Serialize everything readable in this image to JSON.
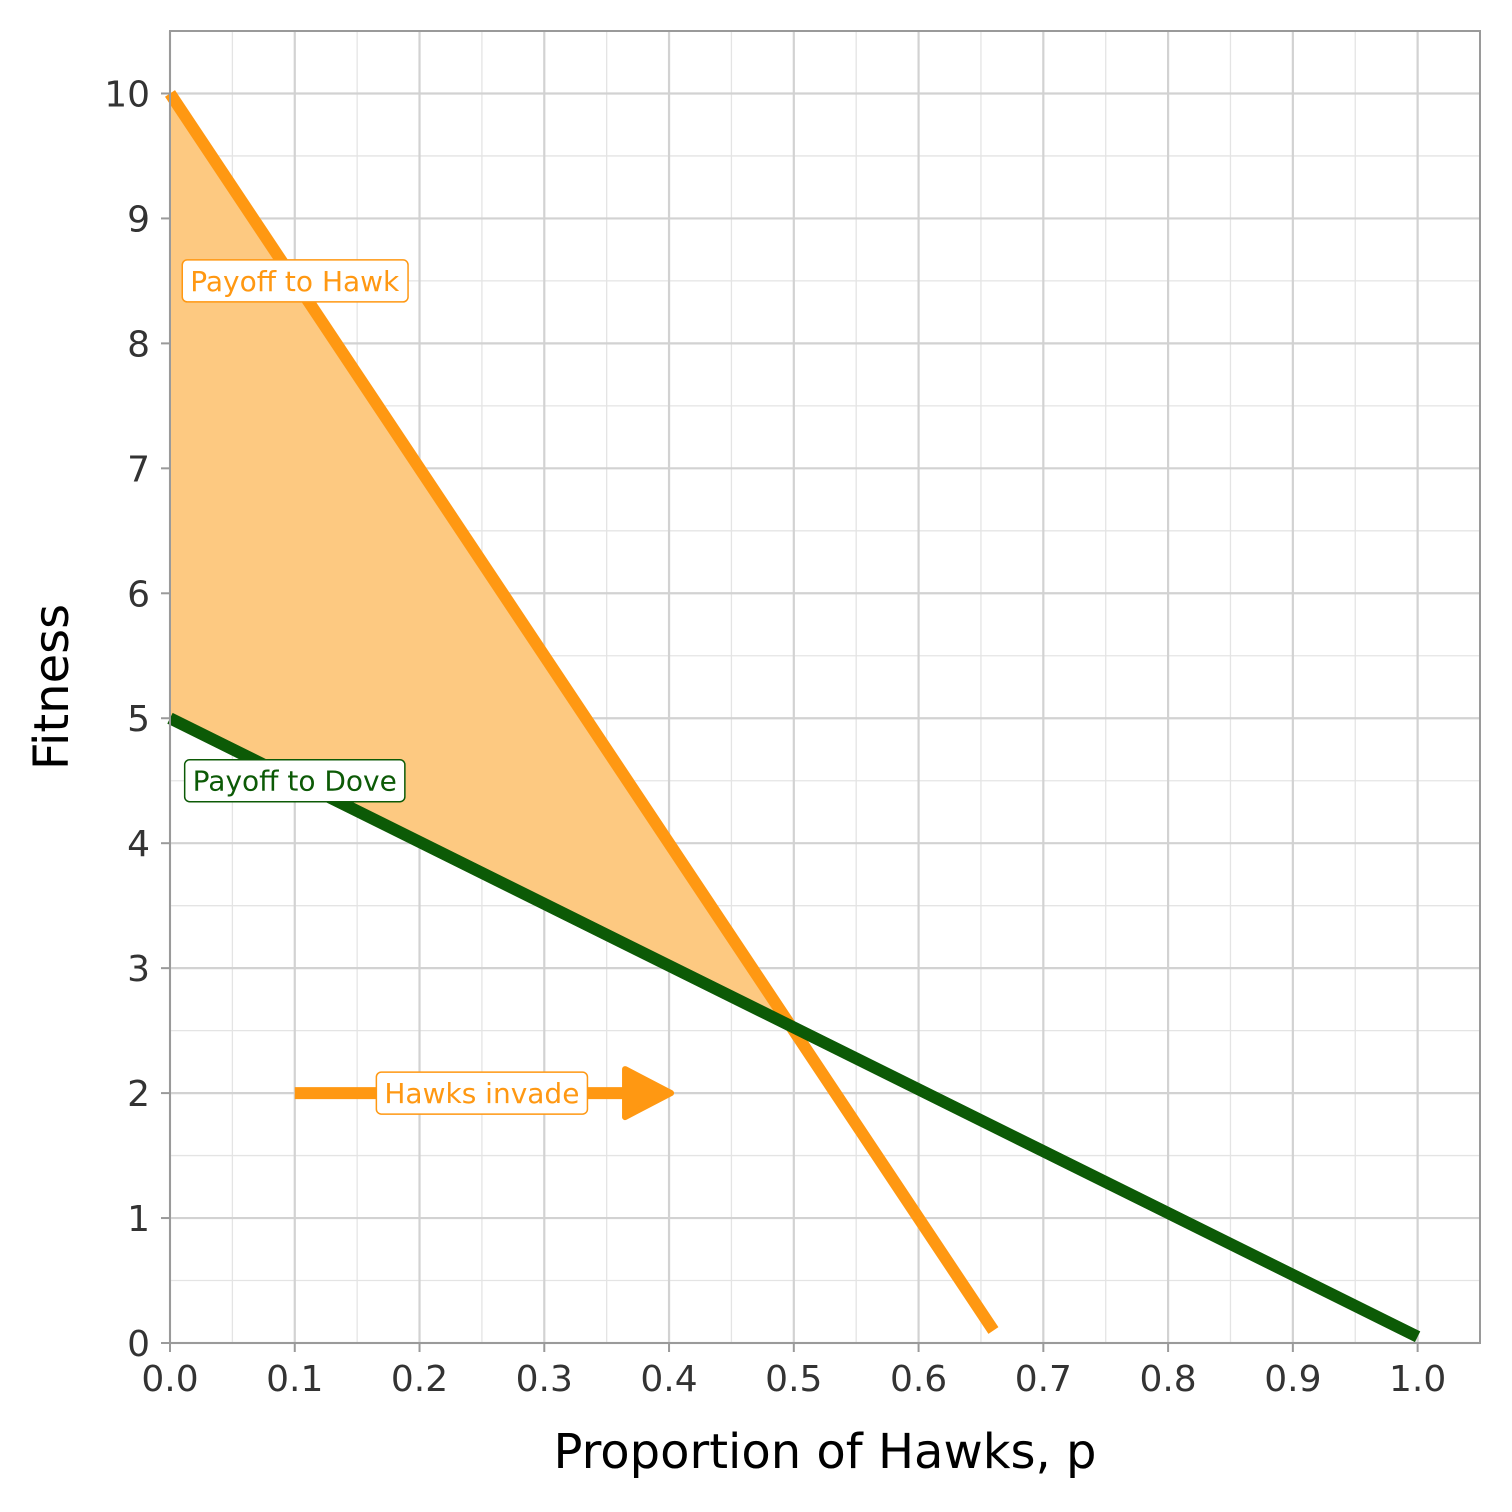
{
  "chart_data": {
    "type": "line",
    "xlabel": "Proportion of Hawks, p",
    "ylabel": "Fitness",
    "xlim": [
      0,
      1.05
    ],
    "ylim": [
      0,
      10.5
    ],
    "x_ticks": [
      "0.0",
      "0.1",
      "0.2",
      "0.3",
      "0.4",
      "0.5",
      "0.6",
      "0.7",
      "0.8",
      "0.9",
      "1.0"
    ],
    "y_ticks": [
      "0",
      "1",
      "2",
      "3",
      "4",
      "5",
      "6",
      "7",
      "8",
      "9",
      "10"
    ],
    "grid": true,
    "series": [
      {
        "name": "Payoff to Hawk",
        "color": "#FF9812",
        "points": [
          [
            0,
            10
          ],
          [
            0.66,
            0.1
          ]
        ]
      },
      {
        "name": "Payoff to Dove",
        "color": "#0C5A06",
        "points": [
          [
            0,
            5
          ],
          [
            1.0,
            0.05
          ]
        ]
      }
    ],
    "shaded_region": {
      "color": "#FDC981",
      "between": [
        "Payoff to Hawk",
        "Payoff to Dove"
      ],
      "x_range": [
        0,
        0.5
      ]
    },
    "annotations": [
      {
        "text": "Payoff to Hawk",
        "x": 0.1,
        "y": 8.5,
        "color": "#FF9812"
      },
      {
        "text": "Payoff to Dove",
        "x": 0.1,
        "y": 4.5,
        "color": "#0C5A06"
      },
      {
        "text": "Hawks invade",
        "x": 0.25,
        "y": 2,
        "color": "#FF9812"
      }
    ],
    "arrow": {
      "from": [
        0.1,
        2
      ],
      "to": [
        0.4,
        2
      ],
      "color": "#FF9812"
    }
  }
}
